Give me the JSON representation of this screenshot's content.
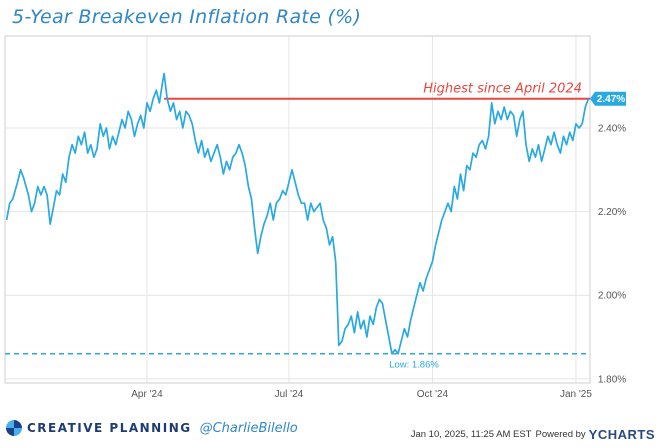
{
  "chart_data": {
    "type": "line",
    "title": "5-Year Breakeven Inflation Rate (%)",
    "xlabel": "",
    "ylabel": "",
    "ylim": [
      1.79,
      2.62
    ],
    "y_ticks": [
      1.8,
      2.0,
      2.2,
      2.4
    ],
    "y_tick_labels": [
      "1.80%",
      "2.00%",
      "2.20%",
      "2.40%"
    ],
    "x_ticks": [
      "2024-04-01",
      "2024-07-01",
      "2024-10-01",
      "2025-01-01"
    ],
    "x_tick_labels": [
      "Apr '24",
      "Jul '24",
      "Oct '24",
      "Jan '25"
    ],
    "xlim": [
      "2024-01-01",
      "2025-01-10"
    ],
    "series": [
      {
        "name": "5-Year Breakeven Inflation Rate",
        "color": "#29a9e1",
        "points": [
          [
            "2024-01-02",
            2.18
          ],
          [
            "2024-01-04",
            2.22
          ],
          [
            "2024-01-06",
            2.23
          ],
          [
            "2024-01-09",
            2.27
          ],
          [
            "2024-01-11",
            2.3
          ],
          [
            "2024-01-13",
            2.28
          ],
          [
            "2024-01-16",
            2.24
          ],
          [
            "2024-01-18",
            2.2
          ],
          [
            "2024-01-20",
            2.22
          ],
          [
            "2024-01-22",
            2.26
          ],
          [
            "2024-01-24",
            2.24
          ],
          [
            "2024-01-26",
            2.26
          ],
          [
            "2024-01-28",
            2.24
          ],
          [
            "2024-01-30",
            2.17
          ],
          [
            "2024-02-01",
            2.21
          ],
          [
            "2024-02-03",
            2.25
          ],
          [
            "2024-02-05",
            2.24
          ],
          [
            "2024-02-07",
            2.29
          ],
          [
            "2024-02-09",
            2.27
          ],
          [
            "2024-02-11",
            2.33
          ],
          [
            "2024-02-13",
            2.36
          ],
          [
            "2024-02-15",
            2.34
          ],
          [
            "2024-02-17",
            2.38
          ],
          [
            "2024-02-19",
            2.36
          ],
          [
            "2024-02-21",
            2.39
          ],
          [
            "2024-02-23",
            2.34
          ],
          [
            "2024-02-25",
            2.36
          ],
          [
            "2024-02-27",
            2.33
          ],
          [
            "2024-02-29",
            2.35
          ],
          [
            "2024-03-02",
            2.41
          ],
          [
            "2024-03-04",
            2.38
          ],
          [
            "2024-03-06",
            2.4
          ],
          [
            "2024-03-08",
            2.35
          ],
          [
            "2024-03-10",
            2.38
          ],
          [
            "2024-03-12",
            2.36
          ],
          [
            "2024-03-14",
            2.39
          ],
          [
            "2024-03-16",
            2.42
          ],
          [
            "2024-03-18",
            2.4
          ],
          [
            "2024-03-20",
            2.44
          ],
          [
            "2024-03-22",
            2.42
          ],
          [
            "2024-03-24",
            2.38
          ],
          [
            "2024-03-26",
            2.41
          ],
          [
            "2024-03-28",
            2.43
          ],
          [
            "2024-03-30",
            2.4
          ],
          [
            "2024-04-01",
            2.46
          ],
          [
            "2024-04-03",
            2.44
          ],
          [
            "2024-04-05",
            2.47
          ],
          [
            "2024-04-07",
            2.49
          ],
          [
            "2024-04-09",
            2.46
          ],
          [
            "2024-04-11",
            2.51
          ],
          [
            "2024-04-12",
            2.53
          ],
          [
            "2024-04-14",
            2.47
          ],
          [
            "2024-04-16",
            2.44
          ],
          [
            "2024-04-18",
            2.46
          ],
          [
            "2024-04-20",
            2.42
          ],
          [
            "2024-04-22",
            2.44
          ],
          [
            "2024-04-24",
            2.4
          ],
          [
            "2024-04-26",
            2.44
          ],
          [
            "2024-04-28",
            2.43
          ],
          [
            "2024-04-30",
            2.41
          ],
          [
            "2024-05-02",
            2.37
          ],
          [
            "2024-05-04",
            2.34
          ],
          [
            "2024-05-06",
            2.37
          ],
          [
            "2024-05-08",
            2.33
          ],
          [
            "2024-05-10",
            2.35
          ],
          [
            "2024-05-12",
            2.32
          ],
          [
            "2024-05-14",
            2.34
          ],
          [
            "2024-05-16",
            2.36
          ],
          [
            "2024-05-18",
            2.33
          ],
          [
            "2024-05-20",
            2.29
          ],
          [
            "2024-05-22",
            2.32
          ],
          [
            "2024-05-24",
            2.3
          ],
          [
            "2024-05-26",
            2.33
          ],
          [
            "2024-05-28",
            2.34
          ],
          [
            "2024-05-30",
            2.36
          ],
          [
            "2024-06-01",
            2.34
          ],
          [
            "2024-06-03",
            2.31
          ],
          [
            "2024-06-05",
            2.26
          ],
          [
            "2024-06-07",
            2.23
          ],
          [
            "2024-06-09",
            2.16
          ],
          [
            "2024-06-11",
            2.1
          ],
          [
            "2024-06-13",
            2.14
          ],
          [
            "2024-06-15",
            2.17
          ],
          [
            "2024-06-17",
            2.19
          ],
          [
            "2024-06-19",
            2.22
          ],
          [
            "2024-06-21",
            2.18
          ],
          [
            "2024-06-23",
            2.22
          ],
          [
            "2024-06-25",
            2.23
          ],
          [
            "2024-06-27",
            2.25
          ],
          [
            "2024-06-29",
            2.24
          ],
          [
            "2024-07-01",
            2.27
          ],
          [
            "2024-07-03",
            2.3
          ],
          [
            "2024-07-05",
            2.27
          ],
          [
            "2024-07-07",
            2.24
          ],
          [
            "2024-07-09",
            2.22
          ],
          [
            "2024-07-11",
            2.22
          ],
          [
            "2024-07-13",
            2.18
          ],
          [
            "2024-07-15",
            2.22
          ],
          [
            "2024-07-17",
            2.2
          ],
          [
            "2024-07-19",
            2.21
          ],
          [
            "2024-07-21",
            2.22
          ],
          [
            "2024-07-23",
            2.18
          ],
          [
            "2024-07-25",
            2.16
          ],
          [
            "2024-07-27",
            2.12
          ],
          [
            "2024-07-29",
            2.14
          ],
          [
            "2024-07-31",
            2.08
          ],
          [
            "2024-08-02",
            1.88
          ],
          [
            "2024-08-04",
            1.89
          ],
          [
            "2024-08-06",
            1.92
          ],
          [
            "2024-08-08",
            1.93
          ],
          [
            "2024-08-10",
            1.95
          ],
          [
            "2024-08-12",
            1.91
          ],
          [
            "2024-08-14",
            1.96
          ],
          [
            "2024-08-16",
            1.92
          ],
          [
            "2024-08-18",
            1.94
          ],
          [
            "2024-08-20",
            1.9
          ],
          [
            "2024-08-22",
            1.95
          ],
          [
            "2024-08-24",
            1.93
          ],
          [
            "2024-08-26",
            1.97
          ],
          [
            "2024-08-28",
            1.99
          ],
          [
            "2024-08-30",
            1.98
          ],
          [
            "2024-09-01",
            1.94
          ],
          [
            "2024-09-03",
            1.9
          ],
          [
            "2024-09-05",
            1.86
          ],
          [
            "2024-09-07",
            1.87
          ],
          [
            "2024-09-09",
            1.86
          ],
          [
            "2024-09-11",
            1.89
          ],
          [
            "2024-09-13",
            1.92
          ],
          [
            "2024-09-15",
            1.9
          ],
          [
            "2024-09-17",
            1.94
          ],
          [
            "2024-09-19",
            1.97
          ],
          [
            "2024-09-21",
            2.0
          ],
          [
            "2024-09-23",
            2.03
          ],
          [
            "2024-09-25",
            2.01
          ],
          [
            "2024-09-27",
            2.04
          ],
          [
            "2024-09-29",
            2.06
          ],
          [
            "2024-10-01",
            2.08
          ],
          [
            "2024-10-03",
            2.12
          ],
          [
            "2024-10-05",
            2.15
          ],
          [
            "2024-10-07",
            2.18
          ],
          [
            "2024-10-09",
            2.2
          ],
          [
            "2024-10-11",
            2.22
          ],
          [
            "2024-10-13",
            2.2
          ],
          [
            "2024-10-15",
            2.26
          ],
          [
            "2024-10-17",
            2.23
          ],
          [
            "2024-10-19",
            2.29
          ],
          [
            "2024-10-21",
            2.25
          ],
          [
            "2024-10-23",
            2.31
          ],
          [
            "2024-10-25",
            2.3
          ],
          [
            "2024-10-27",
            2.34
          ],
          [
            "2024-10-29",
            2.33
          ],
          [
            "2024-10-31",
            2.36
          ],
          [
            "2024-11-02",
            2.37
          ],
          [
            "2024-11-04",
            2.35
          ],
          [
            "2024-11-06",
            2.38
          ],
          [
            "2024-11-08",
            2.46
          ],
          [
            "2024-11-10",
            2.41
          ],
          [
            "2024-11-12",
            2.44
          ],
          [
            "2024-11-14",
            2.42
          ],
          [
            "2024-11-16",
            2.45
          ],
          [
            "2024-11-18",
            2.42
          ],
          [
            "2024-11-20",
            2.44
          ],
          [
            "2024-11-22",
            2.43
          ],
          [
            "2024-11-24",
            2.38
          ],
          [
            "2024-11-26",
            2.42
          ],
          [
            "2024-11-28",
            2.44
          ],
          [
            "2024-11-30",
            2.36
          ],
          [
            "2024-12-02",
            2.32
          ],
          [
            "2024-12-04",
            2.35
          ],
          [
            "2024-12-06",
            2.33
          ],
          [
            "2024-12-08",
            2.36
          ],
          [
            "2024-12-10",
            2.32
          ],
          [
            "2024-12-12",
            2.35
          ],
          [
            "2024-12-14",
            2.38
          ],
          [
            "2024-12-16",
            2.36
          ],
          [
            "2024-12-18",
            2.39
          ],
          [
            "2024-12-20",
            2.36
          ],
          [
            "2024-12-22",
            2.34
          ],
          [
            "2024-12-24",
            2.38
          ],
          [
            "2024-12-26",
            2.36
          ],
          [
            "2024-12-28",
            2.39
          ],
          [
            "2024-12-30",
            2.37
          ],
          [
            "2025-01-01",
            2.41
          ],
          [
            "2025-01-03",
            2.4
          ],
          [
            "2025-01-05",
            2.41
          ],
          [
            "2025-01-07",
            2.45
          ],
          [
            "2025-01-09",
            2.47
          ]
        ]
      }
    ],
    "reference_lines": [
      {
        "name": "highest",
        "value": 2.47,
        "from": "2024-04-12",
        "color": "#e8473e",
        "style": "solid",
        "label": "Highest since April 2024"
      },
      {
        "name": "low",
        "value": 1.86,
        "color": "#29a9e1",
        "style": "dashed",
        "label": "Low: 1.86%"
      }
    ],
    "last_value_label": "2.47%",
    "last_value_color": "#29a9e1",
    "grid": true,
    "legend": "none"
  },
  "footer": {
    "brand_name": "CREATIVE PLANNING",
    "handle": "@CharlieBilello",
    "timestamp": "Jan 10, 2025, 11:25 AM EST",
    "powered_by": "Powered by",
    "provider": "YCHARTS"
  }
}
